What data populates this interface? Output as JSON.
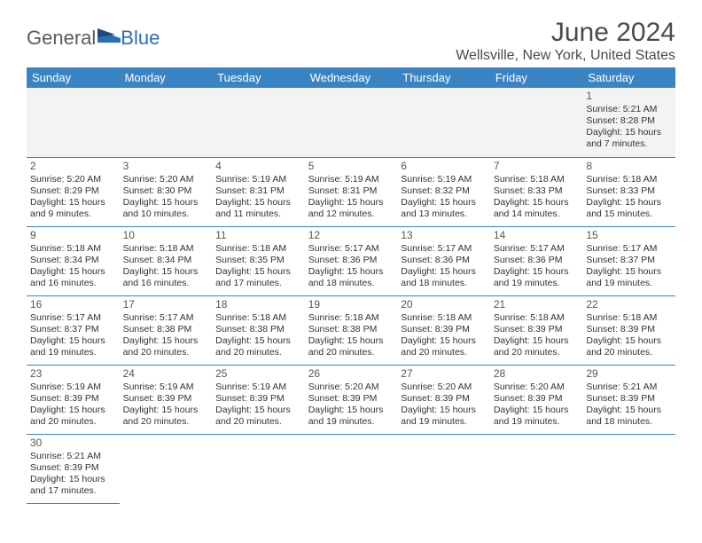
{
  "branding": {
    "logo_general": "General",
    "logo_blue": "Blue",
    "logo_general_color": "#5a5a5a",
    "logo_blue_color": "#2a6db5"
  },
  "header": {
    "month_title": "June 2024",
    "location": "Wellsville, New York, United States"
  },
  "style": {
    "header_bg": "#3b84c4",
    "header_text": "#ffffff",
    "cell_border": "#3b84c4",
    "body_text": "#333333",
    "daynum_color": "#555555",
    "first_row_bg": "#f3f3f3",
    "page_bg": "#ffffff",
    "title_fontsize": 30,
    "location_fontsize": 16,
    "dayheader_fontsize": 13,
    "cell_fontsize": 10.5
  },
  "day_headers": [
    "Sunday",
    "Monday",
    "Tuesday",
    "Wednesday",
    "Thursday",
    "Friday",
    "Saturday"
  ],
  "weeks": [
    [
      null,
      null,
      null,
      null,
      null,
      null,
      {
        "n": "1",
        "sr": "Sunrise: 5:21 AM",
        "ss": "Sunset: 8:28 PM",
        "d1": "Daylight: 15 hours",
        "d2": "and 7 minutes."
      }
    ],
    [
      {
        "n": "2",
        "sr": "Sunrise: 5:20 AM",
        "ss": "Sunset: 8:29 PM",
        "d1": "Daylight: 15 hours",
        "d2": "and 9 minutes."
      },
      {
        "n": "3",
        "sr": "Sunrise: 5:20 AM",
        "ss": "Sunset: 8:30 PM",
        "d1": "Daylight: 15 hours",
        "d2": "and 10 minutes."
      },
      {
        "n": "4",
        "sr": "Sunrise: 5:19 AM",
        "ss": "Sunset: 8:31 PM",
        "d1": "Daylight: 15 hours",
        "d2": "and 11 minutes."
      },
      {
        "n": "5",
        "sr": "Sunrise: 5:19 AM",
        "ss": "Sunset: 8:31 PM",
        "d1": "Daylight: 15 hours",
        "d2": "and 12 minutes."
      },
      {
        "n": "6",
        "sr": "Sunrise: 5:19 AM",
        "ss": "Sunset: 8:32 PM",
        "d1": "Daylight: 15 hours",
        "d2": "and 13 minutes."
      },
      {
        "n": "7",
        "sr": "Sunrise: 5:18 AM",
        "ss": "Sunset: 8:33 PM",
        "d1": "Daylight: 15 hours",
        "d2": "and 14 minutes."
      },
      {
        "n": "8",
        "sr": "Sunrise: 5:18 AM",
        "ss": "Sunset: 8:33 PM",
        "d1": "Daylight: 15 hours",
        "d2": "and 15 minutes."
      }
    ],
    [
      {
        "n": "9",
        "sr": "Sunrise: 5:18 AM",
        "ss": "Sunset: 8:34 PM",
        "d1": "Daylight: 15 hours",
        "d2": "and 16 minutes."
      },
      {
        "n": "10",
        "sr": "Sunrise: 5:18 AM",
        "ss": "Sunset: 8:34 PM",
        "d1": "Daylight: 15 hours",
        "d2": "and 16 minutes."
      },
      {
        "n": "11",
        "sr": "Sunrise: 5:18 AM",
        "ss": "Sunset: 8:35 PM",
        "d1": "Daylight: 15 hours",
        "d2": "and 17 minutes."
      },
      {
        "n": "12",
        "sr": "Sunrise: 5:17 AM",
        "ss": "Sunset: 8:36 PM",
        "d1": "Daylight: 15 hours",
        "d2": "and 18 minutes."
      },
      {
        "n": "13",
        "sr": "Sunrise: 5:17 AM",
        "ss": "Sunset: 8:36 PM",
        "d1": "Daylight: 15 hours",
        "d2": "and 18 minutes."
      },
      {
        "n": "14",
        "sr": "Sunrise: 5:17 AM",
        "ss": "Sunset: 8:36 PM",
        "d1": "Daylight: 15 hours",
        "d2": "and 19 minutes."
      },
      {
        "n": "15",
        "sr": "Sunrise: 5:17 AM",
        "ss": "Sunset: 8:37 PM",
        "d1": "Daylight: 15 hours",
        "d2": "and 19 minutes."
      }
    ],
    [
      {
        "n": "16",
        "sr": "Sunrise: 5:17 AM",
        "ss": "Sunset: 8:37 PM",
        "d1": "Daylight: 15 hours",
        "d2": "and 19 minutes."
      },
      {
        "n": "17",
        "sr": "Sunrise: 5:17 AM",
        "ss": "Sunset: 8:38 PM",
        "d1": "Daylight: 15 hours",
        "d2": "and 20 minutes."
      },
      {
        "n": "18",
        "sr": "Sunrise: 5:18 AM",
        "ss": "Sunset: 8:38 PM",
        "d1": "Daylight: 15 hours",
        "d2": "and 20 minutes."
      },
      {
        "n": "19",
        "sr": "Sunrise: 5:18 AM",
        "ss": "Sunset: 8:38 PM",
        "d1": "Daylight: 15 hours",
        "d2": "and 20 minutes."
      },
      {
        "n": "20",
        "sr": "Sunrise: 5:18 AM",
        "ss": "Sunset: 8:39 PM",
        "d1": "Daylight: 15 hours",
        "d2": "and 20 minutes."
      },
      {
        "n": "21",
        "sr": "Sunrise: 5:18 AM",
        "ss": "Sunset: 8:39 PM",
        "d1": "Daylight: 15 hours",
        "d2": "and 20 minutes."
      },
      {
        "n": "22",
        "sr": "Sunrise: 5:18 AM",
        "ss": "Sunset: 8:39 PM",
        "d1": "Daylight: 15 hours",
        "d2": "and 20 minutes."
      }
    ],
    [
      {
        "n": "23",
        "sr": "Sunrise: 5:19 AM",
        "ss": "Sunset: 8:39 PM",
        "d1": "Daylight: 15 hours",
        "d2": "and 20 minutes."
      },
      {
        "n": "24",
        "sr": "Sunrise: 5:19 AM",
        "ss": "Sunset: 8:39 PM",
        "d1": "Daylight: 15 hours",
        "d2": "and 20 minutes."
      },
      {
        "n": "25",
        "sr": "Sunrise: 5:19 AM",
        "ss": "Sunset: 8:39 PM",
        "d1": "Daylight: 15 hours",
        "d2": "and 20 minutes."
      },
      {
        "n": "26",
        "sr": "Sunrise: 5:20 AM",
        "ss": "Sunset: 8:39 PM",
        "d1": "Daylight: 15 hours",
        "d2": "and 19 minutes."
      },
      {
        "n": "27",
        "sr": "Sunrise: 5:20 AM",
        "ss": "Sunset: 8:39 PM",
        "d1": "Daylight: 15 hours",
        "d2": "and 19 minutes."
      },
      {
        "n": "28",
        "sr": "Sunrise: 5:20 AM",
        "ss": "Sunset: 8:39 PM",
        "d1": "Daylight: 15 hours",
        "d2": "and 19 minutes."
      },
      {
        "n": "29",
        "sr": "Sunrise: 5:21 AM",
        "ss": "Sunset: 8:39 PM",
        "d1": "Daylight: 15 hours",
        "d2": "and 18 minutes."
      }
    ],
    [
      {
        "n": "30",
        "sr": "Sunrise: 5:21 AM",
        "ss": "Sunset: 8:39 PM",
        "d1": "Daylight: 15 hours",
        "d2": "and 17 minutes."
      },
      null,
      null,
      null,
      null,
      null,
      null
    ]
  ]
}
